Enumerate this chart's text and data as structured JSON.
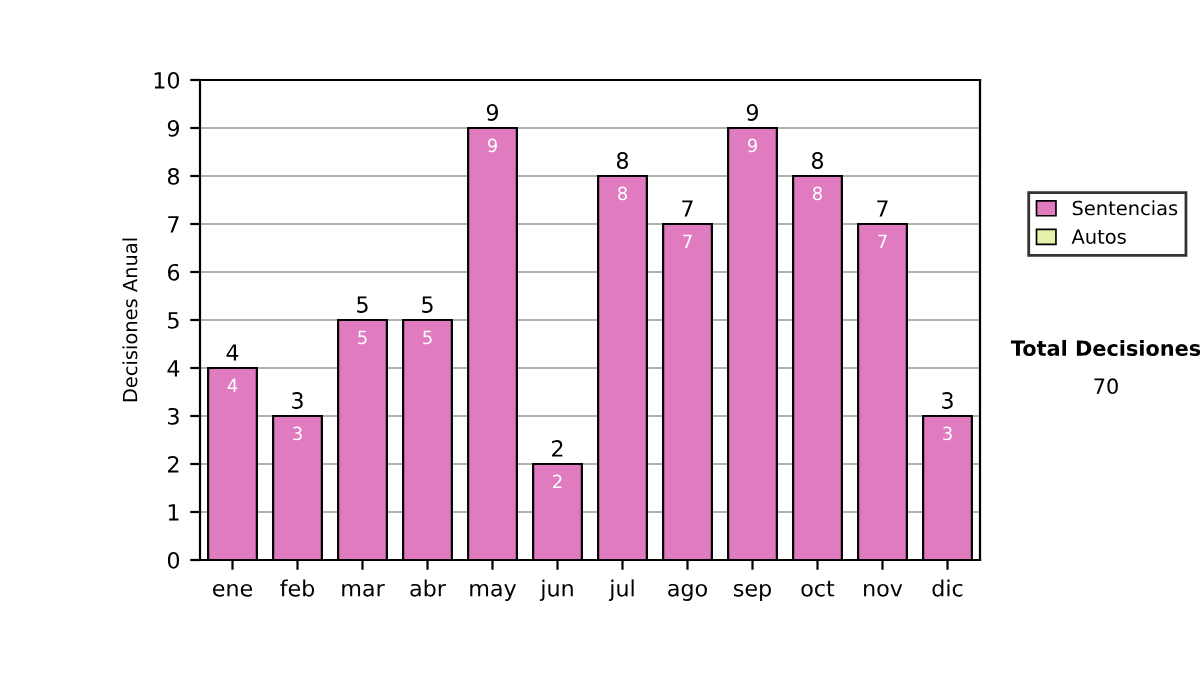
{
  "chart_data": {
    "type": "bar",
    "ylabel": "Decisiones Anual",
    "categories": [
      "ene",
      "feb",
      "mar",
      "abr",
      "may",
      "jun",
      "jul",
      "ago",
      "sep",
      "oct",
      "nov",
      "dic"
    ],
    "series": [
      {
        "name": "Sentencias",
        "color": "#e07bc0",
        "values": [
          4,
          3,
          5,
          5,
          9,
          2,
          8,
          7,
          9,
          8,
          7,
          3
        ]
      },
      {
        "name": "Autos",
        "color": "#e6f0a8",
        "values": [
          null,
          null,
          null,
          null,
          null,
          null,
          null,
          null,
          null,
          null,
          null,
          null
        ]
      }
    ],
    "ylim": [
      0,
      10
    ],
    "yticks": [
      0,
      1,
      2,
      3,
      4,
      5,
      6,
      7,
      8,
      9,
      10
    ],
    "totals": [
      "4",
      "3",
      "5",
      "5",
      "9",
      "2",
      "8",
      "7",
      "9",
      "8",
      "7",
      "3"
    ],
    "grid": "y",
    "legend": "right",
    "data_labels": true,
    "annotations": [
      "Total Decisiones",
      "70"
    ]
  }
}
